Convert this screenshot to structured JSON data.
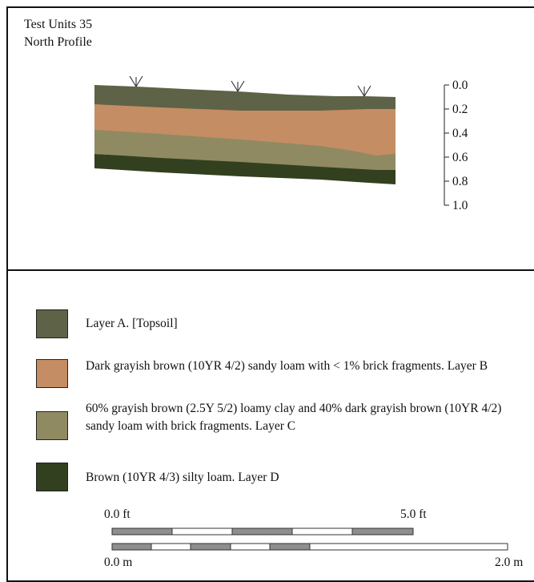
{
  "title": {
    "line1": "Test Units 35",
    "line2": "North Profile"
  },
  "depth_scale": {
    "labels": [
      "0.0",
      "0.2",
      "0.4",
      "0.6",
      "0.8",
      "1.0"
    ]
  },
  "layers": [
    {
      "id": "A",
      "color": "#5e6247",
      "description": "Layer A.  [Topsoil]"
    },
    {
      "id": "B",
      "color": "#c48d63",
      "description": "Dark grayish brown (10YR 4/2) sandy loam with < 1% brick fragments.  Layer B"
    },
    {
      "id": "C",
      "color": "#8f8a61",
      "description": "60% grayish brown (2.5Y 5/2) loamy clay and 40% dark grayish brown (10YR 4/2) sandy loam with brick fragments.  Layer C"
    },
    {
      "id": "D",
      "color": "#33401f",
      "description": "Brown (10YR 4/3) silty loam.  Layer D"
    }
  ],
  "scale_bar": {
    "feet": {
      "start": "0.0 ft",
      "end": "5.0 ft"
    },
    "meters": {
      "start": "0.0 m",
      "end": "2.0 m"
    }
  }
}
